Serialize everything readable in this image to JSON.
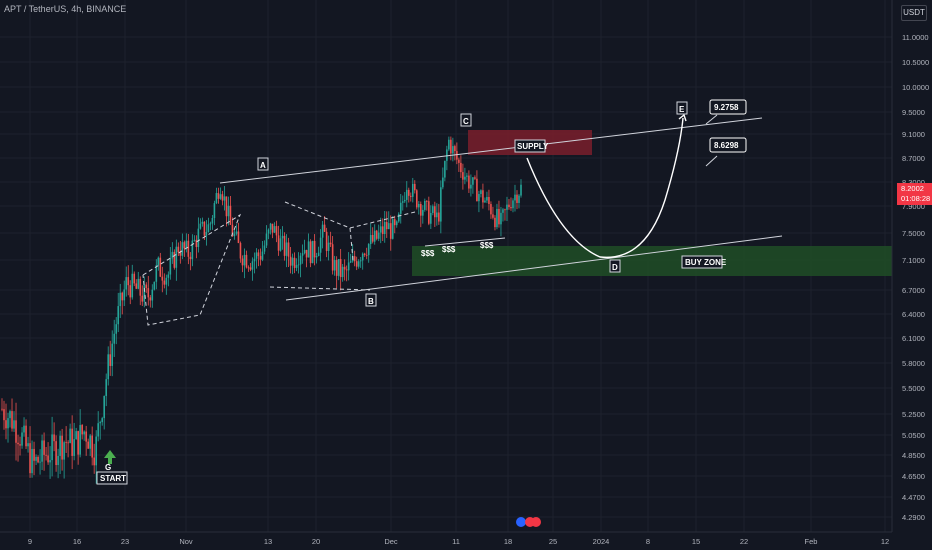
{
  "header": {
    "title": "APT / TetherUS, 4h, BINANCE",
    "currency_button": "USDT"
  },
  "price_axis": {
    "ticks": [
      "11.0000",
      "10.5000",
      "10.0000",
      "9.5000",
      "9.1000",
      "8.7000",
      "8.3000",
      "7.9000",
      "7.5000",
      "7.1000",
      "6.7000",
      "6.4000",
      "6.1000",
      "5.8000",
      "5.5000",
      "5.2500",
      "5.0500",
      "4.8500",
      "4.6500",
      "4.4700",
      "4.2900"
    ],
    "last_price": "8.2002",
    "countdown": "01:08:28"
  },
  "time_axis": {
    "ticks": [
      "9",
      "16",
      "23",
      "Nov",
      "13",
      "20",
      "Dec",
      "11",
      "18",
      "25",
      "2024",
      "8",
      "15",
      "22",
      "Feb",
      "12"
    ]
  },
  "annotations": {
    "wave_labels": [
      "A",
      "B",
      "C",
      "D",
      "E",
      "G"
    ],
    "start_label": "START",
    "supply_label": "SUPPLY",
    "buy_zone_label": "BUY ZONE",
    "liquidity_labels": [
      "$$$",
      "$$$",
      "$$$"
    ],
    "target_1": "9.2758",
    "target_2": "8.6298"
  },
  "colors": {
    "background": "#131722",
    "up_candle": "#26a69a",
    "down_candle": "#ef5350",
    "supply_zone": "#7a1f2b",
    "buy_zone": "#1f4a26",
    "price_tag": "#f23645"
  },
  "chart_data": {
    "type": "candlestick",
    "symbol": "APT / TetherUS",
    "timeframe": "4h",
    "exchange": "BINANCE",
    "y_ticks": [
      11.0,
      10.5,
      10.0,
      9.5,
      9.1,
      8.7,
      8.3,
      7.9,
      7.5,
      7.1,
      6.7,
      6.4,
      6.1,
      5.8,
      5.5,
      5.25,
      5.05,
      4.85,
      4.65,
      4.47,
      4.29
    ],
    "path_closes": [
      5.3,
      5.2,
      5.0,
      4.75,
      4.85,
      4.9,
      5.0,
      4.95,
      5.1,
      4.9,
      5.6,
      6.3,
      6.8,
      6.7,
      6.6,
      7.0,
      6.9,
      7.3,
      7.2,
      7.5,
      7.6,
      8.3,
      7.6,
      7.2,
      7.1,
      7.2,
      7.6,
      7.3,
      7.1,
      7.3,
      7.2,
      7.5,
      7.0,
      6.9,
      7.1,
      7.3,
      7.4,
      7.6,
      7.5,
      8.3,
      8.0,
      7.8,
      7.7,
      9.0,
      8.6,
      8.3,
      8.1,
      7.9,
      7.6,
      8.0,
      8.2
    ],
    "last_price": 8.2002,
    "supply_zone": [
      8.6,
      9.0
    ],
    "buy_zone": [
      6.85,
      7.3
    ],
    "targets": [
      9.2758,
      8.6298
    ],
    "wave_points": {
      "G": 4.8,
      "A": 8.35,
      "B": 6.6,
      "C": 9.1,
      "D": 7.05,
      "E": 9.35
    }
  }
}
